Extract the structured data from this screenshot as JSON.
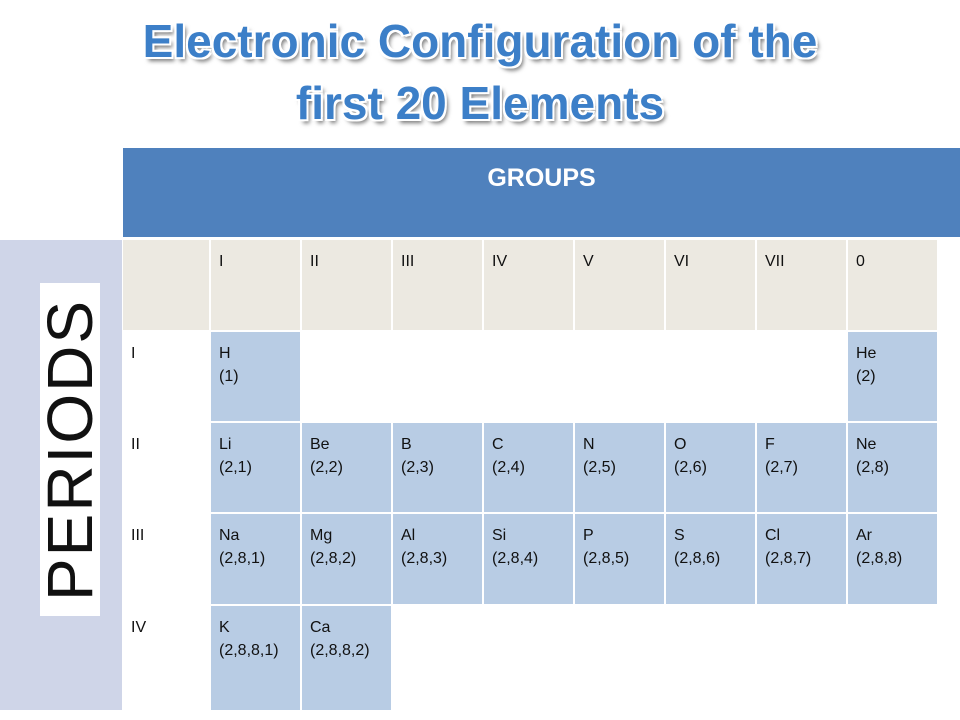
{
  "title": {
    "lines": [
      "Electronic Configuration of the",
      "first 20 Elements"
    ]
  },
  "groups_header": "GROUPS",
  "periods_label": "PERIODS",
  "table": {
    "column_headers": [
      "I",
      "II",
      "III",
      "IV",
      "V",
      "VI",
      "VII",
      "0"
    ],
    "rows": [
      {
        "label": "I",
        "cells": [
          {
            "symbol": "H",
            "config": "(1)"
          },
          null,
          null,
          null,
          null,
          null,
          null,
          {
            "symbol": "He",
            "config": "(2)"
          }
        ]
      },
      {
        "label": "II",
        "cells": [
          {
            "symbol": "Li",
            "config": "(2,1)"
          },
          {
            "symbol": "Be",
            "config": "(2,2)"
          },
          {
            "symbol": "B",
            "config": "(2,3)"
          },
          {
            "symbol": "C",
            "config": "(2,4)"
          },
          {
            "symbol": "N",
            "config": "(2,5)"
          },
          {
            "symbol": "O",
            "config": "(2,6)"
          },
          {
            "symbol": "F",
            "config": "(2,7)"
          },
          {
            "symbol": "Ne",
            "config": "(2,8)"
          }
        ]
      },
      {
        "label": "III",
        "cells": [
          {
            "symbol": "Na",
            "config": "(2,8,1)"
          },
          {
            "symbol": "Mg",
            "config": "(2,8,2)"
          },
          {
            "symbol": "Al",
            "config": "(2,8,3)"
          },
          {
            "symbol": "Si",
            "config": "(2,8,4)"
          },
          {
            "symbol": "P",
            "config": "(2,8,5)"
          },
          {
            "symbol": "S",
            "config": "(2,8,6)"
          },
          {
            "symbol": "Cl",
            "config": "(2,8,7)"
          },
          {
            "symbol": "Ar",
            "config": "(2,8,8)"
          }
        ]
      },
      {
        "label": "IV",
        "cells": [
          {
            "symbol": "K",
            "config": "(2,8,8,1)"
          },
          {
            "symbol": "Ca",
            "config": "(2,8,8,2)"
          },
          null,
          null,
          null,
          null,
          null,
          null
        ]
      }
    ]
  }
}
